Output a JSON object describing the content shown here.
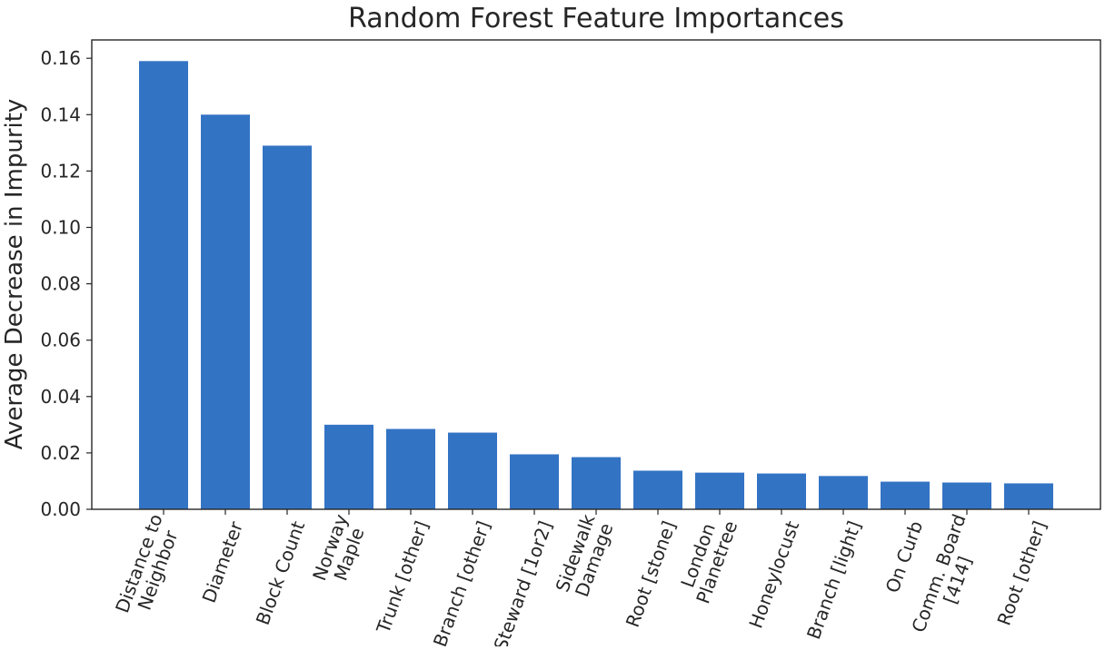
{
  "chart_data": {
    "type": "bar",
    "title": "Random Forest Feature Importances",
    "xlabel": "",
    "ylabel": "Average Decrease in Impurity",
    "ylim": [
      0,
      0.1665
    ],
    "yticks": [
      "0.00",
      "0.02",
      "0.04",
      "0.06",
      "0.08",
      "0.10",
      "0.12",
      "0.14",
      "0.16"
    ],
    "categories": [
      [
        "Distance to",
        "Neighbor"
      ],
      [
        "Diameter"
      ],
      [
        "Block Count"
      ],
      [
        "Norway",
        "Maple"
      ],
      [
        "Trunk [other]"
      ],
      [
        "Branch [other]"
      ],
      [
        "Steward [1or2]"
      ],
      [
        "Sidewalk",
        "Damage"
      ],
      [
        "Root [stone]"
      ],
      [
        "London",
        "Planetree"
      ],
      [
        "Honeylocust"
      ],
      [
        "Branch [light]"
      ],
      [
        "On Curb"
      ],
      [
        "Comm. Board",
        "[414]"
      ],
      [
        "Root [other]"
      ]
    ],
    "values": [
      0.159,
      0.14,
      0.129,
      0.03,
      0.0285,
      0.0272,
      0.0195,
      0.0185,
      0.0137,
      0.013,
      0.0127,
      0.0118,
      0.0098,
      0.0095,
      0.0092
    ],
    "bar_color": "#3373c4",
    "grid": false,
    "legend": "none"
  }
}
